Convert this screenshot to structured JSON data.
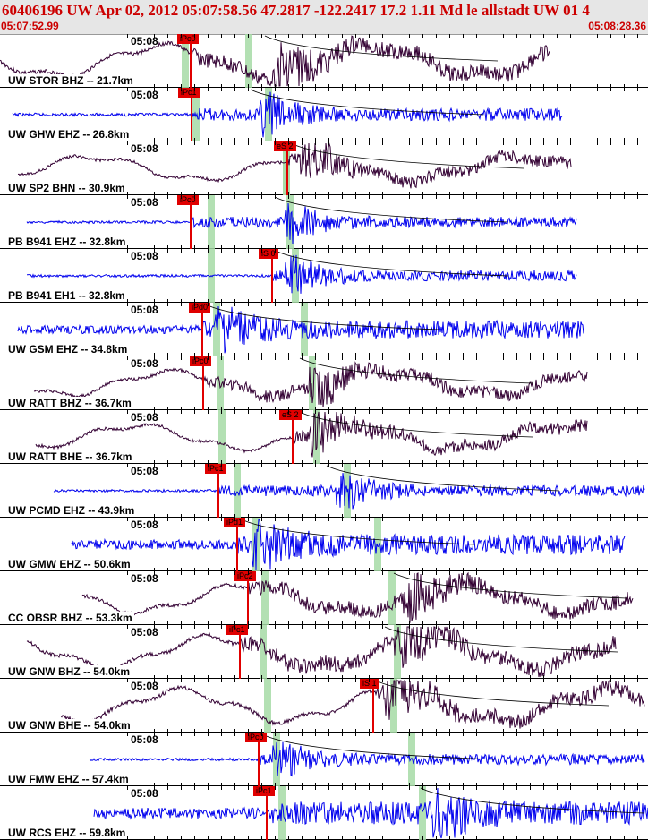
{
  "header": {
    "title": "60406196 UW Apr 02, 2012 05:07:58.56    47.2817 -122.2417 17.2 1.11 Md le allstadt UW 01     4",
    "start_time": "05:07:52.99",
    "end_time": "05:08:28.36"
  },
  "time_label": "05:08",
  "colors": {
    "header_text": "#cc0000",
    "pick": "#e00000",
    "window": "#a6dba6",
    "wave_blue": "#0000ee",
    "wave_dark": "#330033",
    "model_curve": "#000000"
  },
  "traces": [
    {
      "station": "UW STOR BHZ -- 21.7km",
      "pick": "iPc0",
      "color": "dark",
      "amp": 0.45,
      "style": "broadband"
    },
    {
      "station": "UW GHW EHZ -- 26.8km",
      "pick": "iPc1",
      "color": "blue",
      "amp": 0.35,
      "style": "burst"
    },
    {
      "station": "UW SP2 BHN -- 30.9km",
      "pick": "eS 2",
      "color": "dark",
      "amp": 0.35,
      "style": "broadband"
    },
    {
      "station": "PB B941 EHZ -- 32.8km",
      "pick": "iPc0",
      "color": "blue",
      "amp": 0.3,
      "style": "burst"
    },
    {
      "station": "PB B941 EH1 -- 32.8km",
      "pick": "iS 0",
      "color": "blue",
      "amp": 0.3,
      "style": "burst"
    },
    {
      "station": "UW GSM EHZ -- 34.8km",
      "pick": "iPd0",
      "color": "blue",
      "amp": 0.35,
      "style": "noisy"
    },
    {
      "station": "UW RATT BHZ -- 36.7km",
      "pick": "iPc0",
      "color": "dark",
      "amp": 0.35,
      "style": "broadband"
    },
    {
      "station": "UW RATT BHE -- 36.7km",
      "pick": "eS 2",
      "color": "dark",
      "amp": 0.35,
      "style": "broadband"
    },
    {
      "station": "UW PCMD EHZ -- 43.9km",
      "pick": "iPc1",
      "color": "blue",
      "amp": 0.3,
      "style": "burst"
    },
    {
      "station": "UW GMW EHZ -- 50.6km",
      "pick": "iPd1",
      "color": "blue",
      "amp": 0.4,
      "style": "noisy"
    },
    {
      "station": "CC OBSR BHZ -- 53.3km",
      "pick": "iPc2",
      "color": "dark",
      "amp": 0.4,
      "style": "broadband"
    },
    {
      "station": "UW GNW BHZ -- 54.0km",
      "pick": "iPc1",
      "color": "dark",
      "amp": 0.45,
      "style": "broadband"
    },
    {
      "station": "UW GNW BHE -- 54.0km",
      "pick": "iS 1",
      "color": "dark",
      "amp": 0.45,
      "style": "broadband"
    },
    {
      "station": "UW FMW EHZ -- 57.4km",
      "pick": "iPc0",
      "color": "blue",
      "amp": 0.3,
      "style": "burst"
    },
    {
      "station": "UW RCS EHZ -- 59.8km",
      "pick": "iPc1",
      "color": "blue",
      "amp": 0.45,
      "style": "noisy"
    }
  ]
}
